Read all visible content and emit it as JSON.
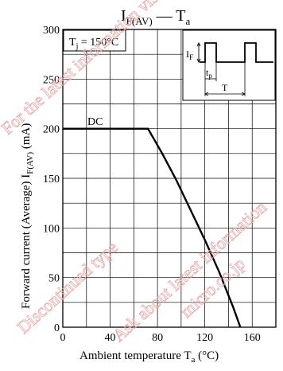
{
  "chart_data": {
    "type": "line",
    "title_main": "I",
    "title_sub": "F(AV)",
    "title_dash": " — T",
    "title_sub2": "a",
    "ylabel_main": "Forward current (Average)  I",
    "ylabel_sub": "F(AV)",
    "ylabel_unit": "  (mA)",
    "xlabel_main": "Ambient temperature  T",
    "xlabel_sub": "a",
    "xlabel_unit": "  (°C)",
    "xlim": [
      0,
      180
    ],
    "ylim": [
      0,
      300
    ],
    "x_ticks": [
      0,
      40,
      80,
      120,
      160
    ],
    "y_ticks": [
      0,
      50,
      100,
      150,
      200,
      250,
      300
    ],
    "grid": true,
    "series": [
      {
        "name": "DC",
        "x": [
          0,
          72,
          84,
          96,
          108,
          120,
          132,
          144,
          150
        ],
        "y": [
          200,
          200,
          175,
          148,
          118,
          88,
          56,
          20,
          0
        ]
      }
    ],
    "annotations": {
      "condition_main": "T",
      "condition_sub": "j",
      "condition_value": " = 150°C",
      "inset_if_main": "I",
      "inset_if_sub": "F",
      "inset_tp_main": "t",
      "inset_tp_sub": "p",
      "inset_t": "T"
    }
  },
  "watermarks": [
    "For the latest information visit our website",
    "Discontinued type",
    "Ask about latest information",
    "micro.co.jp"
  ]
}
